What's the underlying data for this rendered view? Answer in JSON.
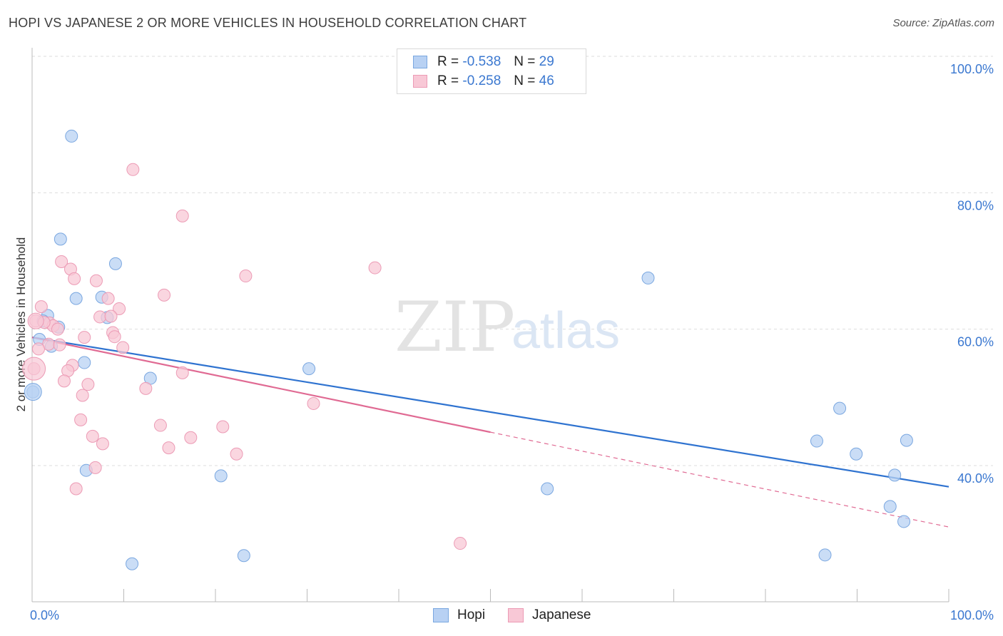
{
  "header": {
    "title": "HOPI VS JAPANESE 2 OR MORE VEHICLES IN HOUSEHOLD CORRELATION CHART",
    "source": "Source: ZipAtlas.com"
  },
  "watermark": {
    "zip": "ZIP",
    "atlas": "atlas"
  },
  "legend_top": {
    "rows": [
      {
        "r_label": "R =",
        "r_value": "-0.538",
        "n_label": "N =",
        "n_value": "29"
      },
      {
        "r_label": "R =",
        "r_value": "-0.258",
        "n_label": "N =",
        "n_value": "46"
      }
    ]
  },
  "legend_bottom": {
    "hopi": "Hopi",
    "japanese": "Japanese"
  },
  "colors": {
    "hopi_fill": "#b8d1f3",
    "hopi_stroke": "#7aa7e0",
    "hopi_line": "#2f73d0",
    "japanese_fill": "#f8c8d6",
    "japanese_stroke": "#ec9bb5",
    "japanese_line": "#e06a93",
    "tick_text": "#3b78d0",
    "grid": "#dddddd"
  },
  "chart_data": {
    "type": "scatter",
    "title": "HOPI VS JAPANESE 2 OR MORE VEHICLES IN HOUSEHOLD CORRELATION CHART",
    "xlabel": "",
    "ylabel": "2 or more Vehicles in Household",
    "xlim": [
      0,
      100
    ],
    "ylim": [
      20,
      102
    ],
    "x_tick_labels": [
      "0.0%",
      "100.0%"
    ],
    "y_ticks": [
      40,
      60,
      80,
      100
    ],
    "y_tick_labels": [
      "40.0%",
      "60.0%",
      "80.0%",
      "100.0%"
    ],
    "grid": true,
    "legend_placement": "bottom",
    "series": [
      {
        "name": "Hopi",
        "points": [
          {
            "x": 4.3,
            "y": 88.3
          },
          {
            "x": 3.1,
            "y": 73.2
          },
          {
            "x": 9.1,
            "y": 69.6
          },
          {
            "x": 4.8,
            "y": 64.5
          },
          {
            "x": 7.6,
            "y": 64.7
          },
          {
            "x": 1.7,
            "y": 62.0
          },
          {
            "x": 8.2,
            "y": 61.7
          },
          {
            "x": 1.2,
            "y": 61.2
          },
          {
            "x": 2.9,
            "y": 60.3
          },
          {
            "x": 0.8,
            "y": 58.5
          },
          {
            "x": 2.1,
            "y": 57.5
          },
          {
            "x": 5.7,
            "y": 55.1
          },
          {
            "x": 12.9,
            "y": 52.8
          },
          {
            "x": 0.1,
            "y": 50.8
          },
          {
            "x": 5.9,
            "y": 39.3
          },
          {
            "x": 10.9,
            "y": 25.6
          },
          {
            "x": 20.6,
            "y": 38.5
          },
          {
            "x": 23.1,
            "y": 26.8
          },
          {
            "x": 30.2,
            "y": 54.2
          },
          {
            "x": 56.2,
            "y": 36.6
          },
          {
            "x": 67.2,
            "y": 67.5
          },
          {
            "x": 85.6,
            "y": 43.6
          },
          {
            "x": 88.1,
            "y": 48.4
          },
          {
            "x": 89.9,
            "y": 41.7
          },
          {
            "x": 93.6,
            "y": 34.0
          },
          {
            "x": 94.1,
            "y": 38.6
          },
          {
            "x": 95.1,
            "y": 31.8
          },
          {
            "x": 95.4,
            "y": 43.7
          },
          {
            "x": 86.5,
            "y": 26.9
          }
        ],
        "trend": {
          "x": [
            0,
            100
          ],
          "y": [
            58.8,
            36.9
          ]
        }
      },
      {
        "name": "Japanese",
        "points": [
          {
            "x": 11.0,
            "y": 83.4
          },
          {
            "x": 16.4,
            "y": 76.6
          },
          {
            "x": 3.2,
            "y": 69.9
          },
          {
            "x": 4.2,
            "y": 68.8
          },
          {
            "x": 4.6,
            "y": 67.4
          },
          {
            "x": 7.0,
            "y": 67.1
          },
          {
            "x": 23.3,
            "y": 67.8
          },
          {
            "x": 37.4,
            "y": 69.0
          },
          {
            "x": 14.4,
            "y": 65.0
          },
          {
            "x": 8.3,
            "y": 64.5
          },
          {
            "x": 1.0,
            "y": 63.3
          },
          {
            "x": 9.5,
            "y": 63.0
          },
          {
            "x": 7.4,
            "y": 61.8
          },
          {
            "x": 0.4,
            "y": 61.2
          },
          {
            "x": 1.9,
            "y": 60.9
          },
          {
            "x": 2.3,
            "y": 60.5
          },
          {
            "x": 2.8,
            "y": 60.0
          },
          {
            "x": 8.8,
            "y": 59.5
          },
          {
            "x": 5.7,
            "y": 58.8
          },
          {
            "x": 9.0,
            "y": 58.9
          },
          {
            "x": 1.8,
            "y": 57.8
          },
          {
            "x": 9.9,
            "y": 57.3
          },
          {
            "x": 0.7,
            "y": 57.1
          },
          {
            "x": 4.4,
            "y": 54.7
          },
          {
            "x": 3.9,
            "y": 53.9
          },
          {
            "x": 16.4,
            "y": 53.6
          },
          {
            "x": 0.2,
            "y": 54.2
          },
          {
            "x": 3.5,
            "y": 52.4
          },
          {
            "x": 6.1,
            "y": 51.9
          },
          {
            "x": 12.4,
            "y": 51.3
          },
          {
            "x": 5.5,
            "y": 50.3
          },
          {
            "x": 30.7,
            "y": 49.1
          },
          {
            "x": 5.3,
            "y": 46.7
          },
          {
            "x": 14.0,
            "y": 45.9
          },
          {
            "x": 20.8,
            "y": 45.7
          },
          {
            "x": 6.6,
            "y": 44.3
          },
          {
            "x": 17.3,
            "y": 44.1
          },
          {
            "x": 7.7,
            "y": 43.2
          },
          {
            "x": 14.9,
            "y": 42.6
          },
          {
            "x": 22.3,
            "y": 41.7
          },
          {
            "x": 6.9,
            "y": 39.7
          },
          {
            "x": 4.8,
            "y": 36.6
          },
          {
            "x": 46.7,
            "y": 28.6
          },
          {
            "x": 1.3,
            "y": 61.0
          },
          {
            "x": 3.0,
            "y": 57.7
          },
          {
            "x": 8.6,
            "y": 61.9
          }
        ],
        "trend": {
          "x": [
            0,
            50
          ],
          "y": [
            58.8,
            44.9
          ]
        },
        "trend_extension": {
          "x": [
            50,
            100
          ],
          "y": [
            44.9,
            31.0
          ]
        }
      }
    ]
  }
}
